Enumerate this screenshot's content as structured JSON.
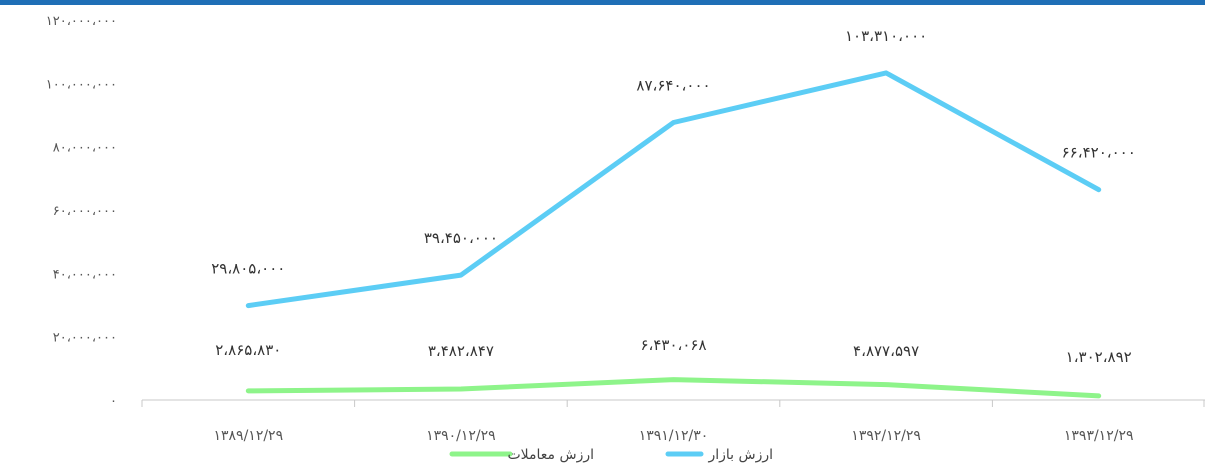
{
  "chart_data": {
    "type": "line",
    "title": "",
    "xlabel": "",
    "ylabel": "",
    "ylim": [
      0,
      120000000
    ],
    "ytick_values": [
      0,
      20000000,
      40000000,
      60000000,
      80000000,
      100000000,
      120000000
    ],
    "ytick_labels": [
      "۰",
      "۲۰،۰۰۰،۰۰۰",
      "۴۰،۰۰۰،۰۰۰",
      "۶۰،۰۰۰،۰۰۰",
      "۸۰،۰۰۰،۰۰۰",
      "۱۰۰،۰۰۰،۰۰۰",
      "۱۲۰،۰۰۰،۰۰۰"
    ],
    "categories": [
      "۱۳۸۹/۱۲/۲۹",
      "۱۳۹۰/۱۲/۲۹",
      "۱۳۹۱/۱۲/۳۰",
      "۱۳۹۲/۱۲/۲۹",
      "۱۳۹۳/۱۲/۲۹"
    ],
    "series": [
      {
        "name": "ارزش بازار",
        "color": "#5ccdf5",
        "values": [
          29805000,
          39450000,
          87640000,
          103310000,
          66420000
        ],
        "labels": [
          "۲۹،۸۰۵،۰۰۰",
          "۳۹،۴۵۰،۰۰۰",
          "۸۷،۶۴۰،۰۰۰",
          "۱۰۳،۳۱۰،۰۰۰",
          "۶۶،۴۲۰،۰۰۰"
        ]
      },
      {
        "name": "ارزش معاملات",
        "color": "#8ef48a",
        "values": [
          2865830,
          3482847,
          6430068,
          4877597,
          1302892
        ],
        "labels": [
          "۲،۸۶۵،۸۳۰",
          "۳،۴۸۲،۸۴۷",
          "۶،۴۳۰،۰۶۸",
          "۴،۸۷۷،۵۹۷",
          "۱،۳۰۲،۸۹۲"
        ]
      }
    ],
    "grid": false,
    "legend": "bottom-center"
  }
}
